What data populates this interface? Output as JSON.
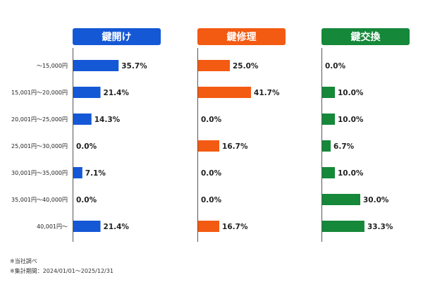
{
  "chart_data": {
    "type": "bar",
    "orientation": "horizontal",
    "categories": [
      "～15,000円",
      "15,001円～20,000円",
      "20,001円～25,000円",
      "25,001円～30,000円",
      "30,001円～35,000円",
      "35,001円～40,000円",
      "40,001円～"
    ],
    "value_suffix": "%",
    "xlim": [
      0,
      100
    ],
    "grid": false,
    "panels": [
      {
        "name": "鍵開け",
        "color": "#1558d6",
        "values": [
          35.7,
          21.4,
          14.3,
          0.0,
          7.1,
          0.0,
          21.4
        ]
      },
      {
        "name": "鍵修理",
        "color": "#f35a12",
        "values": [
          25.0,
          41.7,
          0.0,
          16.7,
          0.0,
          0.0,
          16.7
        ]
      },
      {
        "name": "鍵交換",
        "color": "#15883a",
        "values": [
          0.0,
          10.0,
          10.0,
          6.7,
          10.0,
          30.0,
          33.3
        ]
      }
    ]
  },
  "notes": [
    "※当社調べ",
    "※集計期間：2024/01/01～2025/12/31"
  ]
}
